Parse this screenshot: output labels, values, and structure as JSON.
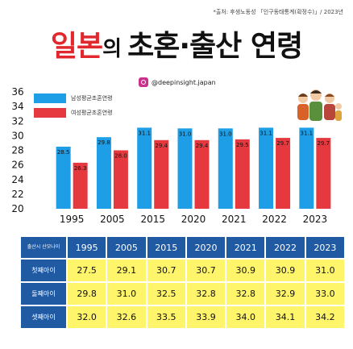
{
  "source": "*출처: 후생노동성 「인구동태통계(확정수)」/ 2023년",
  "title": {
    "part1": "일본",
    "part2": "의 ",
    "part3": "초혼·출산 연령"
  },
  "handle": "@deepinsight.japan",
  "colors": {
    "male": "#1e9ee6",
    "female": "#e5393f",
    "header": "#1f5aa3",
    "cell": "#fff56a",
    "title_red": "#e0282e"
  },
  "chart_data": {
    "type": "bar",
    "categories": [
      "1995",
      "2005",
      "2015",
      "2020",
      "2021",
      "2022",
      "2023"
    ],
    "series": [
      {
        "name": "남성평균초혼연령",
        "values": [
          28.5,
          29.8,
          31.1,
          31.0,
          31.0,
          31.1,
          31.1
        ]
      },
      {
        "name": "여성평균초혼연령",
        "values": [
          26.3,
          28.0,
          29.4,
          29.4,
          29.5,
          29.7,
          29.7
        ]
      }
    ],
    "ylim": [
      20,
      36
    ],
    "yticks": [
      20,
      22,
      24,
      26,
      28,
      30,
      32,
      34,
      36
    ],
    "legend": "top-left",
    "grid": false
  },
  "table": {
    "corner": "출산시 산모나이",
    "columns": [
      "1995",
      "2005",
      "2015",
      "2020",
      "2021",
      "2022",
      "2023"
    ],
    "rows": [
      {
        "label": "첫째아이",
        "values": [
          "27.5",
          "29.1",
          "30.7",
          "30.7",
          "30.9",
          "30.9",
          "31.0"
        ]
      },
      {
        "label": "둘째아이",
        "values": [
          "29.8",
          "31.0",
          "32.5",
          "32.8",
          "32.8",
          "32.9",
          "33.0"
        ]
      },
      {
        "label": "셋째아이",
        "values": [
          "32.0",
          "32.6",
          "33.5",
          "33.9",
          "34.0",
          "34.1",
          "34.2"
        ]
      }
    ]
  }
}
